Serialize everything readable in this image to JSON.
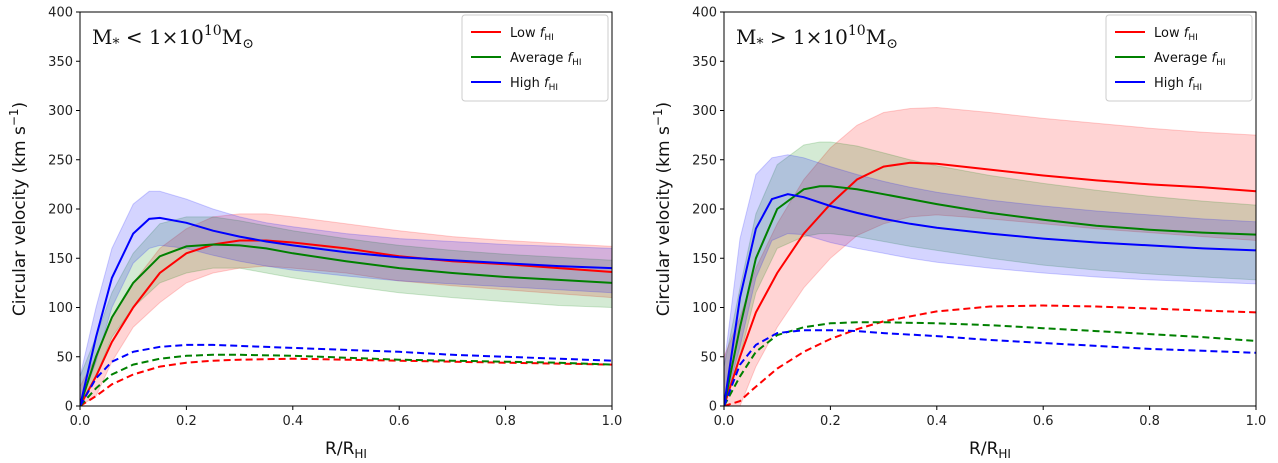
{
  "chart_data": [
    {
      "type": "line",
      "annotation": {
        "base": "M",
        "sub": "*",
        "op": " < 1×10",
        "exp": "10",
        "unit": "M",
        "unit_sub": "⊙"
      },
      "xlabel": {
        "main": "R/R",
        "sub": "HI"
      },
      "ylabel": {
        "main": "Circular velocity (km s",
        "sup": "−1",
        "end": ")"
      },
      "xlim": [
        0.0,
        1.0
      ],
      "ylim": [
        0,
        400
      ],
      "xticks": [
        "0.0",
        "0.2",
        "0.4",
        "0.6",
        "0.8",
        "1.0"
      ],
      "yticks": [
        "0",
        "50",
        "100",
        "150",
        "200",
        "250",
        "300",
        "350",
        "400"
      ],
      "legend": {
        "position": "top-right"
      },
      "series": [
        {
          "name": "Low",
          "name_italic": "f",
          "name_sub": "HI",
          "color": "#ff0000",
          "solid": {
            "x": [
              0.0,
              0.03,
              0.06,
              0.1,
              0.15,
              0.2,
              0.25,
              0.3,
              0.35,
              0.4,
              0.5,
              0.6,
              0.7,
              0.8,
              0.9,
              1.0
            ],
            "y": [
              0,
              30,
              65,
              100,
              135,
              155,
              164,
              168,
              168,
              166,
              160,
              152,
              147,
              144,
              140,
              136
            ]
          },
          "band_upper": [
            20,
            50,
            90,
            125,
            160,
            180,
            192,
            195,
            195,
            192,
            185,
            178,
            172,
            168,
            165,
            162
          ],
          "band_lower": [
            0,
            10,
            45,
            80,
            105,
            125,
            135,
            140,
            142,
            140,
            135,
            127,
            122,
            118,
            114,
            110
          ],
          "dashed": {
            "x": [
              0.0,
              0.03,
              0.06,
              0.1,
              0.15,
              0.2,
              0.25,
              0.3,
              0.4,
              0.5,
              0.6,
              0.7,
              0.8,
              0.9,
              1.0
            ],
            "y": [
              0,
              10,
              22,
              32,
              40,
              44,
              46,
              47,
              48,
              47,
              46,
              45,
              44,
              43,
              42
            ]
          }
        },
        {
          "name": "Average",
          "name_italic": "f",
          "name_sub": "HI",
          "color": "#008000",
          "solid": {
            "x": [
              0.0,
              0.03,
              0.06,
              0.1,
              0.15,
              0.2,
              0.25,
              0.3,
              0.35,
              0.4,
              0.5,
              0.6,
              0.7,
              0.8,
              0.9,
              1.0
            ],
            "y": [
              0,
              50,
              90,
              125,
              152,
              162,
              164,
              163,
              160,
              155,
              147,
              140,
              135,
              131,
              128,
              125
            ]
          },
          "band_upper": [
            30,
            70,
            115,
            155,
            185,
            192,
            192,
            188,
            183,
            178,
            170,
            163,
            158,
            154,
            151,
            148
          ],
          "band_lower": [
            0,
            30,
            70,
            100,
            125,
            135,
            140,
            140,
            135,
            130,
            122,
            115,
            110,
            106,
            102,
            100
          ],
          "dashed": {
            "x": [
              0.0,
              0.03,
              0.06,
              0.1,
              0.15,
              0.2,
              0.25,
              0.3,
              0.4,
              0.5,
              0.6,
              0.7,
              0.8,
              0.9,
              1.0
            ],
            "y": [
              0,
              18,
              32,
              42,
              48,
              51,
              52,
              52,
              51,
              49,
              47,
              46,
              45,
              44,
              42
            ]
          }
        },
        {
          "name": "High",
          "name_italic": "f",
          "name_sub": "HI",
          "color": "#0000ff",
          "solid": {
            "x": [
              0.0,
              0.03,
              0.06,
              0.1,
              0.13,
              0.15,
              0.2,
              0.25,
              0.3,
              0.35,
              0.4,
              0.5,
              0.6,
              0.7,
              0.8,
              0.9,
              1.0
            ],
            "y": [
              0,
              70,
              130,
              175,
              190,
              191,
              186,
              178,
              172,
              167,
              163,
              156,
              151,
              148,
              145,
              142,
              140
            ]
          },
          "band_upper": [
            30,
            100,
            160,
            205,
            218,
            218,
            210,
            200,
            192,
            186,
            182,
            175,
            170,
            167,
            164,
            162,
            160
          ],
          "band_lower": [
            0,
            45,
            100,
            145,
            160,
            163,
            160,
            153,
            147,
            142,
            138,
            132,
            127,
            124,
            121,
            118,
            115
          ],
          "dashed": {
            "x": [
              0.0,
              0.03,
              0.06,
              0.1,
              0.15,
              0.2,
              0.25,
              0.3,
              0.4,
              0.5,
              0.6,
              0.7,
              0.8,
              0.9,
              1.0
            ],
            "y": [
              0,
              28,
              45,
              55,
              60,
              62,
              62,
              61,
              59,
              57,
              55,
              52,
              50,
              48,
              46
            ]
          }
        }
      ]
    },
    {
      "type": "line",
      "annotation": {
        "base": "M",
        "sub": "*",
        "op": " > 1×10",
        "exp": "10",
        "unit": "M",
        "unit_sub": "⊙"
      },
      "xlabel": {
        "main": "R/R",
        "sub": "HI"
      },
      "ylabel": {
        "main": "Circular velocity (km s",
        "sup": "−1",
        "end": ")"
      },
      "xlim": [
        0.0,
        1.0
      ],
      "ylim": [
        0,
        400
      ],
      "xticks": [
        "0.0",
        "0.2",
        "0.4",
        "0.6",
        "0.8",
        "1.0"
      ],
      "yticks": [
        "0",
        "50",
        "100",
        "150",
        "200",
        "250",
        "300",
        "350",
        "400"
      ],
      "legend": {
        "position": "top-right"
      },
      "series": [
        {
          "name": "Low",
          "name_italic": "f",
          "name_sub": "HI",
          "color": "#ff0000",
          "solid": {
            "x": [
              0.0,
              0.03,
              0.06,
              0.1,
              0.15,
              0.2,
              0.25,
              0.3,
              0.35,
              0.4,
              0.5,
              0.6,
              0.7,
              0.8,
              0.9,
              1.0
            ],
            "y": [
              0,
              50,
              95,
              135,
              175,
              205,
              230,
              243,
              247,
              246,
              240,
              234,
              229,
              225,
              222,
              218
            ]
          },
          "band_upper": [
            50,
            90,
            140,
            185,
            230,
            262,
            285,
            298,
            302,
            303,
            298,
            292,
            287,
            282,
            278,
            275
          ],
          "band_lower": [
            0,
            0,
            40,
            80,
            120,
            150,
            173,
            185,
            192,
            194,
            190,
            185,
            180,
            176,
            172,
            168
          ],
          "dashed": {
            "x": [
              0.0,
              0.03,
              0.05,
              0.1,
              0.15,
              0.2,
              0.25,
              0.3,
              0.4,
              0.5,
              0.6,
              0.7,
              0.8,
              0.9,
              1.0
            ],
            "y": [
              0,
              5,
              15,
              38,
              55,
              68,
              78,
              86,
              96,
              101,
              102,
              101,
              99,
              97,
              95
            ]
          }
        },
        {
          "name": "Average",
          "name_italic": "f",
          "name_sub": "HI",
          "color": "#008000",
          "solid": {
            "x": [
              0.0,
              0.03,
              0.06,
              0.1,
              0.15,
              0.18,
              0.2,
              0.25,
              0.3,
              0.35,
              0.4,
              0.5,
              0.6,
              0.7,
              0.8,
              0.9,
              1.0
            ],
            "y": [
              0,
              80,
              150,
              200,
              220,
              223,
              223,
              220,
              215,
              210,
              205,
              196,
              189,
              183,
              179,
              176,
              174
            ]
          },
          "band_upper": [
            40,
            120,
            195,
            245,
            265,
            268,
            268,
            264,
            257,
            250,
            244,
            234,
            226,
            219,
            213,
            208,
            204
          ],
          "band_lower": [
            0,
            50,
            115,
            160,
            172,
            175,
            175,
            172,
            167,
            162,
            158,
            150,
            143,
            138,
            134,
            131,
            128
          ],
          "dashed": {
            "x": [
              0.0,
              0.03,
              0.06,
              0.1,
              0.15,
              0.2,
              0.25,
              0.3,
              0.4,
              0.5,
              0.6,
              0.7,
              0.8,
              0.9,
              1.0
            ],
            "y": [
              0,
              30,
              55,
              72,
              80,
              84,
              85,
              85,
              84,
              82,
              79,
              76,
              73,
              70,
              66
            ]
          }
        },
        {
          "name": "High",
          "name_italic": "f",
          "name_sub": "HI",
          "color": "#0000ff",
          "solid": {
            "x": [
              0.0,
              0.03,
              0.06,
              0.09,
              0.12,
              0.15,
              0.2,
              0.25,
              0.3,
              0.35,
              0.4,
              0.5,
              0.6,
              0.7,
              0.8,
              0.9,
              1.0
            ],
            "y": [
              0,
              110,
              180,
              210,
              215,
              212,
              203,
              196,
              190,
              185,
              181,
              175,
              170,
              166,
              163,
              160,
              158
            ]
          },
          "band_upper": [
            40,
            170,
            235,
            252,
            255,
            252,
            243,
            235,
            228,
            222,
            217,
            209,
            203,
            198,
            194,
            190,
            187
          ],
          "band_lower": [
            0,
            60,
            130,
            168,
            175,
            174,
            166,
            160,
            155,
            150,
            146,
            140,
            135,
            131,
            128,
            126,
            124
          ],
          "dashed": {
            "x": [
              0.0,
              0.03,
              0.06,
              0.1,
              0.15,
              0.2,
              0.25,
              0.3,
              0.4,
              0.5,
              0.6,
              0.7,
              0.8,
              0.9,
              1.0
            ],
            "y": [
              0,
              42,
              62,
              74,
              77,
              77,
              76,
              74,
              71,
              67,
              64,
              61,
              58,
              56,
              54
            ]
          }
        }
      ]
    }
  ]
}
